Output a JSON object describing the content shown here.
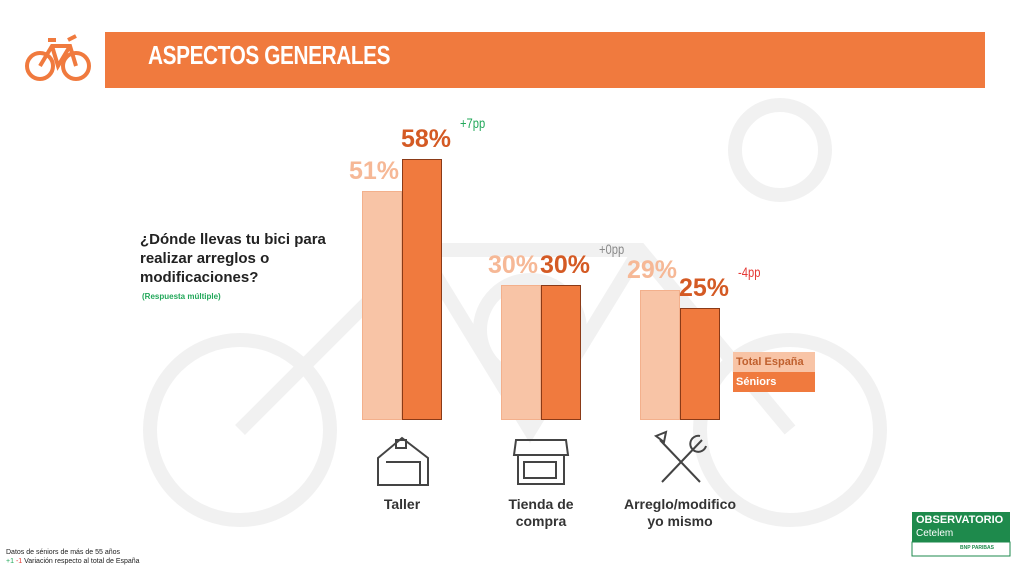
{
  "header": {
    "title": "ASPECTOS GENERALES"
  },
  "question": {
    "text": "¿Dónde llevas tu bici para realizar arreglos o modificaciones?",
    "note": "(Respuesta múltiple)"
  },
  "chart_data": {
    "type": "bar",
    "categories": [
      "Taller",
      "Tienda de compra",
      "Arreglo/modifico yo mismo"
    ],
    "series": [
      {
        "name": "Total España",
        "color": "#f8c4a6",
        "label_color": "#f6b896",
        "values": [
          51,
          30,
          29
        ],
        "value_labels": [
          "51%",
          "30%",
          "29%"
        ]
      },
      {
        "name": "Séniors",
        "color": "#f07a3e",
        "label_color": "#d45a24",
        "values": [
          58,
          30,
          25
        ],
        "value_labels": [
          "58%",
          "30%",
          "25%"
        ]
      }
    ],
    "annotations": [
      {
        "text": "+7pp",
        "color": "#22a85a"
      },
      {
        "text": "+0pp",
        "color": "#8a8a8a"
      },
      {
        "text": "-4pp",
        "color": "#e53935"
      }
    ]
  },
  "footer": {
    "source": "Datos de séniors de más de 55 años",
    "up": "+1",
    "down": "-1",
    "legend": "Variación respecto al total de España"
  },
  "logo": {
    "name": "OBSERVATORIO",
    "brand": "Cetelem",
    "group": "BNP PARIBAS"
  }
}
